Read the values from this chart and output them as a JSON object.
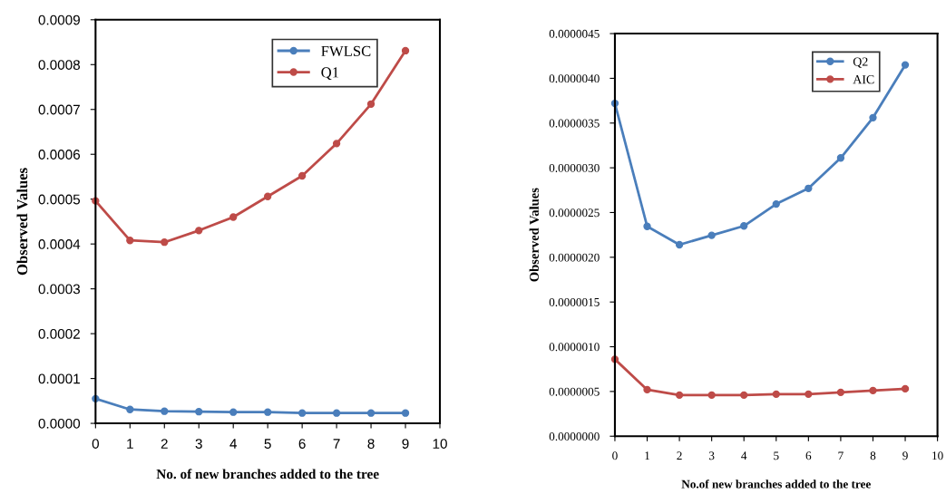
{
  "chart_data": [
    {
      "type": "line",
      "xlabel": "No. of new branches added to the tree",
      "ylabel": "Observed Values",
      "marker": "circle",
      "line_style": "solid",
      "legend": "top right",
      "grid": false,
      "x": [
        0,
        1,
        2,
        3,
        4,
        5,
        6,
        7,
        8,
        9
      ],
      "xlim": [
        0,
        10
      ],
      "xticks": [
        0,
        1,
        2,
        3,
        4,
        5,
        6,
        7,
        8,
        9,
        10
      ],
      "ylim": [
        0,
        0.0009
      ],
      "yticks": [
        {
          "value": 0,
          "label": "0.0000"
        },
        {
          "value": 0.0001,
          "label": "0.0001"
        },
        {
          "value": 0.0002,
          "label": "0.0002"
        },
        {
          "value": 0.0003,
          "label": "0.0003"
        },
        {
          "value": 0.0004,
          "label": "0.0004"
        },
        {
          "value": 0.0005,
          "label": "0.0005"
        },
        {
          "value": 0.0006,
          "label": "0.0006"
        },
        {
          "value": 0.0007,
          "label": "0.0007"
        },
        {
          "value": 0.0008,
          "label": "0.0008"
        },
        {
          "value": 0.0009,
          "label": "0.0009"
        }
      ],
      "series": [
        {
          "name": "FWLSC",
          "color": "#4a7ebb",
          "values": [
            5.5e-05,
            3.1e-05,
            2.7e-05,
            2.6e-05,
            2.5e-05,
            2.5e-05,
            2.3e-05,
            2.3e-05,
            2.3e-05,
            2.3e-05
          ]
        },
        {
          "name": "Q1",
          "color": "#be4b48",
          "values": [
            0.000496,
            0.000408,
            0.000404,
            0.00043,
            0.00046,
            0.000506,
            0.000552,
            0.000624,
            0.000712,
            0.000831
          ]
        }
      ]
    },
    {
      "type": "line",
      "xlabel": "No.of new branches added to the tree",
      "ylabel": "Observed Values",
      "marker": "circle",
      "line_style": "solid",
      "legend": "top right",
      "grid": false,
      "x": [
        0,
        1,
        2,
        3,
        4,
        5,
        6,
        7,
        8,
        9
      ],
      "xlim": [
        0,
        10
      ],
      "xticks": [
        0,
        1,
        2,
        3,
        4,
        5,
        6,
        7,
        8,
        9,
        10
      ],
      "ylim": [
        0,
        4.5e-06
      ],
      "yticks": [
        {
          "value": 0,
          "label": "0.0000000"
        },
        {
          "value": 5e-07,
          "label": "0.0000005"
        },
        {
          "value": 1e-06,
          "label": "0.0000010"
        },
        {
          "value": 1.5e-06,
          "label": "0.0000015"
        },
        {
          "value": 2e-06,
          "label": "0.0000020"
        },
        {
          "value": 2.5e-06,
          "label": "0.0000025"
        },
        {
          "value": 3e-06,
          "label": "0.0000030"
        },
        {
          "value": 3.5e-06,
          "label": "0.0000035"
        },
        {
          "value": 4e-06,
          "label": "0.0000040"
        },
        {
          "value": 4.5e-06,
          "label": "0.0000045"
        }
      ],
      "series": [
        {
          "name": "Q2",
          "color": "#4a7ebb",
          "values": [
            3.72e-06,
            2.345e-06,
            2.14e-06,
            2.245e-06,
            2.35e-06,
            2.595e-06,
            2.77e-06,
            3.11e-06,
            3.56e-06,
            4.15e-06
          ]
        },
        {
          "name": "AIC",
          "color": "#be4b48",
          "values": [
            8.6e-07,
            5.2e-07,
            4.6e-07,
            4.6e-07,
            4.6e-07,
            4.7e-07,
            4.7e-07,
            4.9e-07,
            5.1e-07,
            5.3e-07
          ]
        }
      ]
    }
  ]
}
